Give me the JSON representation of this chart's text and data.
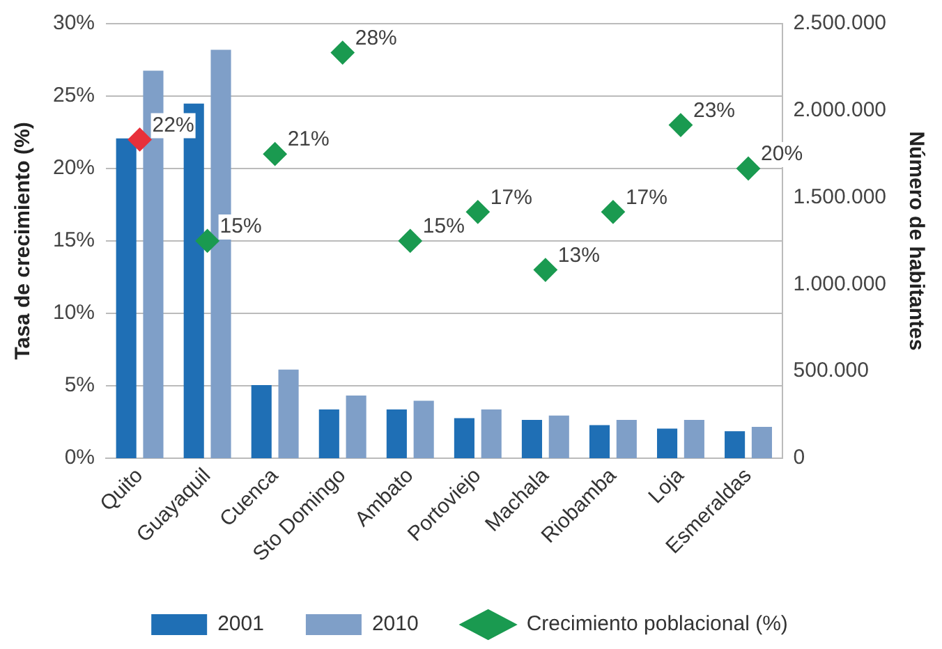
{
  "chart_data": {
    "type": "bar",
    "categories": [
      "Quito",
      "Guayaquil",
      "Cuenca",
      "Sto Domingo",
      "Ambato",
      "Portoviejo",
      "Machala",
      "Riobamba",
      "Loja",
      "Esmeraldas"
    ],
    "ylabel": "Tasa de crecimiento (%)",
    "y2label": "Número de habitantes",
    "ylim": [
      0,
      30
    ],
    "yticks": [
      {
        "value": 0,
        "label": "0%"
      },
      {
        "value": 5,
        "label": "5%"
      },
      {
        "value": 10,
        "label": "10%"
      },
      {
        "value": 15,
        "label": "15%"
      },
      {
        "value": 20,
        "label": "20%"
      },
      {
        "value": 25,
        "label": "25%"
      },
      {
        "value": 30,
        "label": "30%"
      }
    ],
    "y2lim": [
      0,
      2500000
    ],
    "y2ticks": [
      {
        "value": 0,
        "label": "0"
      },
      {
        "value": 500000,
        "label": "500.000"
      },
      {
        "value": 1000000,
        "label": "1.000.000"
      },
      {
        "value": 1500000,
        "label": "1.500.000"
      },
      {
        "value": 2000000,
        "label": "2.000.000"
      },
      {
        "value": 2500000,
        "label": "2.500.000"
      }
    ],
    "series": [
      {
        "name": "2001",
        "color": "#1f6fb5",
        "axis": "y2",
        "values": [
          1840000,
          2040000,
          420000,
          280000,
          280000,
          230000,
          220000,
          190000,
          170000,
          155000
        ]
      },
      {
        "name": "2010",
        "color": "#7f9fc8",
        "axis": "y2",
        "values": [
          2230000,
          2350000,
          510000,
          360000,
          330000,
          280000,
          245000,
          220000,
          220000,
          180000
        ]
      },
      {
        "name": "Crecimiento poblacional (%)",
        "type": "scatter",
        "color": "#1a9a50",
        "colors": [
          "#e8303a",
          "#1a9a50",
          "#1a9a50",
          "#1a9a50",
          "#1a9a50",
          "#1a9a50",
          "#1a9a50",
          "#1a9a50",
          "#1a9a50",
          "#1a9a50"
        ],
        "axis": "y",
        "marker": "diamond",
        "data_labels": true,
        "value_labels": [
          "22%",
          "15%",
          "21%",
          "28%",
          "15%",
          "17%",
          "13%",
          "17%",
          "23%",
          "20%"
        ],
        "values": [
          22,
          15,
          21,
          28,
          15,
          17,
          13,
          17,
          23,
          20
        ]
      }
    ],
    "grid": "y",
    "legend": "bottom"
  }
}
